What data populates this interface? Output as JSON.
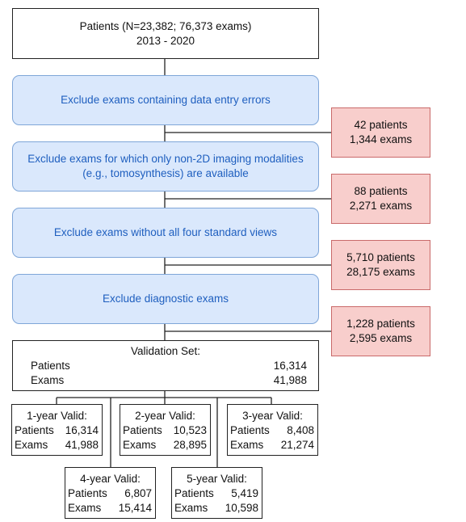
{
  "top": {
    "line1": "Patients (N=23,382; 76,373 exams)",
    "line2": "2013 - 2020"
  },
  "steps": [
    {
      "line1": "Exclude exams containing data entry errors",
      "line2": ""
    },
    {
      "line1": "Exclude exams for which only non-2D imaging modalities",
      "line2": "(e.g., tomosynthesis) are available"
    },
    {
      "line1": "Exclude exams without all four standard views",
      "line2": ""
    },
    {
      "line1": "Exclude diagnostic exams",
      "line2": ""
    }
  ],
  "exclusions": [
    {
      "patients": "42 patients",
      "exams": "1,344 exams"
    },
    {
      "patients": "88 patients",
      "exams": "2,271 exams"
    },
    {
      "patients": "5,710 patients",
      "exams": "28,175 exams"
    },
    {
      "patients": "1,228 patients",
      "exams": "2,595 exams"
    }
  ],
  "validation": {
    "title": "Validation Set:",
    "patients_label": "Patients",
    "patients_value": "16,314",
    "exams_label": "Exams",
    "exams_value": "41,988"
  },
  "subsets": [
    {
      "title": "1-year Valid:",
      "patients_label": "Patients",
      "patients_value": "16,314",
      "exams_label": "Exams",
      "exams_value": "41,988"
    },
    {
      "title": "2-year Valid:",
      "patients_label": "Patients",
      "patients_value": "10,523",
      "exams_label": "Exams",
      "exams_value": "28,895"
    },
    {
      "title": "3-year Valid:",
      "patients_label": "Patients",
      "patients_value": "8,408",
      "exams_label": "Exams",
      "exams_value": "21,274"
    },
    {
      "title": "4-year Valid:",
      "patients_label": "Patients",
      "patients_value": "6,807",
      "exams_label": "Exams",
      "exams_value": "15,414"
    },
    {
      "title": "5-year Valid:",
      "patients_label": "Patients",
      "patients_value": "5,419",
      "exams_label": "Exams",
      "exams_value": "10,598"
    }
  ]
}
